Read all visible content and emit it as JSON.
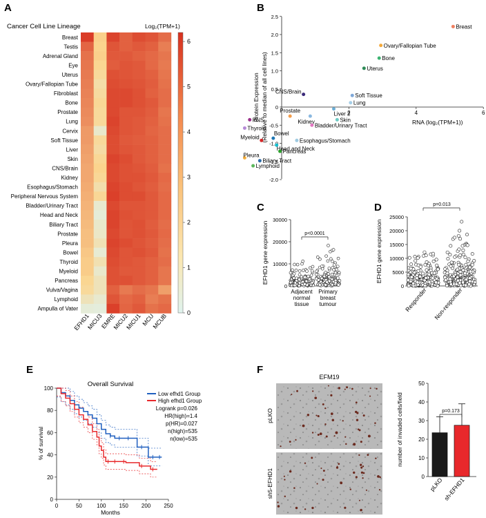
{
  "panels": {
    "a": "A",
    "b": "B",
    "c": "C",
    "d": "D",
    "e": "E",
    "f": "F"
  },
  "heatmap": {
    "title": "Cancer Cell Line Lineage",
    "colorbar_title": "Log₂(TPM+1)",
    "colorbar_ticks": [
      "0",
      "1",
      "2",
      "3",
      "4",
      "5",
      "6"
    ],
    "columns": [
      "EFHD1",
      "MICU3",
      "EMRE",
      "MICU2",
      "MICU1",
      "MCU",
      "MCUB"
    ],
    "rows": [
      "Breast",
      "Testis",
      "Adrenal Gland",
      "Eye",
      "Uterus",
      "Ovary/Fallopian Tube",
      "Fibroblast",
      "Bone",
      "Prostate",
      "Lung",
      "Cervix",
      "Soft Tissue",
      "Liver",
      "Skin",
      "CNS/Brain",
      "Kidney",
      "Esophagus/Stomach",
      "Peripheral Nervous System",
      "Bladder/Urinary Tract",
      "Head and Neck",
      "Biliary Tract",
      "Prostate",
      "Pleura",
      "Bowel",
      "Thyroid",
      "Myeloid",
      "Pancreas",
      "Vulva/Vagina",
      "Lymphoid",
      "Ampulla of Vater"
    ],
    "values": [
      [
        5.9,
        2.3,
        5.7,
        5.0,
        5.5,
        5.3,
        4.7
      ],
      [
        4.9,
        2.2,
        5.3,
        5.0,
        5.2,
        5.0,
        4.3
      ],
      [
        4.6,
        2.3,
        5.2,
        5.2,
        5.0,
        4.8,
        4.5
      ],
      [
        4.5,
        2.1,
        5.1,
        5.3,
        5.2,
        4.8,
        4.4
      ],
      [
        4.4,
        1.9,
        5.4,
        5.3,
        5.2,
        5.0,
        4.5
      ],
      [
        4.3,
        1.6,
        5.5,
        5.4,
        5.3,
        5.1,
        4.6
      ],
      [
        4.2,
        1.8,
        5.6,
        5.6,
        5.4,
        5.0,
        4.7
      ],
      [
        4.1,
        2.0,
        5.6,
        5.6,
        5.4,
        5.2,
        4.7
      ],
      [
        4.0,
        1.9,
        5.6,
        5.3,
        5.3,
        5.1,
        4.5
      ],
      [
        3.9,
        1.9,
        5.7,
        5.3,
        5.2,
        5.0,
        4.6
      ],
      [
        3.6,
        0.8,
        5.6,
        5.3,
        5.2,
        4.9,
        4.7
      ],
      [
        3.6,
        1.9,
        5.5,
        5.2,
        5.1,
        5.0,
        4.7
      ],
      [
        3.5,
        1.7,
        5.5,
        5.3,
        5.2,
        5.0,
        4.7
      ],
      [
        3.4,
        2.0,
        5.7,
        5.5,
        5.2,
        5.0,
        4.7
      ],
      [
        3.3,
        2.2,
        5.6,
        5.4,
        5.3,
        5.1,
        4.6
      ],
      [
        3.3,
        2.0,
        5.6,
        5.4,
        5.4,
        5.2,
        4.8
      ],
      [
        3.2,
        1.5,
        5.7,
        5.5,
        5.3,
        5.1,
        4.7
      ],
      [
        3.1,
        2.0,
        5.8,
        5.5,
        5.5,
        5.2,
        4.8
      ],
      [
        3.0,
        0.7,
        5.6,
        5.3,
        5.3,
        5.2,
        4.8
      ],
      [
        2.9,
        0.5,
        5.7,
        5.4,
        5.3,
        5.2,
        4.8
      ],
      [
        2.8,
        0.8,
        5.7,
        5.3,
        5.4,
        5.1,
        4.7
      ],
      [
        2.7,
        0.9,
        5.6,
        5.3,
        5.4,
        5.2,
        4.8
      ],
      [
        2.7,
        1.3,
        5.7,
        5.5,
        5.3,
        5.1,
        4.7
      ],
      [
        2.5,
        0.6,
        5.6,
        5.3,
        5.4,
        5.2,
        4.6
      ],
      [
        2.4,
        1.4,
        5.5,
        5.3,
        5.2,
        5.0,
        4.7
      ],
      [
        2.4,
        0.8,
        5.4,
        5.2,
        5.2,
        5.0,
        4.5
      ],
      [
        2.1,
        1.2,
        5.4,
        5.4,
        5.2,
        5.0,
        4.5
      ],
      [
        1.9,
        1.2,
        5.0,
        4.4,
        4.7,
        4.5,
        3.5
      ],
      [
        1.2,
        0.7,
        5.3,
        4.8,
        5.0,
        4.3,
        4.6
      ],
      [
        0.5,
        0.4,
        5.8,
        4.9,
        5.2,
        4.6,
        4.8
      ]
    ],
    "colormin": "#dff3ee",
    "colormid": "#fbd58f",
    "colormax": "#d7301f"
  },
  "scatter": {
    "ylabel": "Protein Expression",
    "ylabel2": "(Relative to median of all cell lines)",
    "xlabel": "RNA (log₂(TPM+1))",
    "xticks": [
      "2",
      "4",
      "6"
    ],
    "yticks": [
      "2.5",
      "2.0",
      "1.5",
      "1.0",
      "0.5",
      "0",
      "-0.5",
      "-1.0",
      "-1.5",
      "-2.0"
    ],
    "points": [
      {
        "label": "Breast",
        "x": 5.1,
        "y": 2.22,
        "color": "#f08060"
      },
      {
        "label": "Ovary/Fallopian Tube",
        "x": 2.95,
        "y": 1.7,
        "color": "#f4a93a"
      },
      {
        "label": "Bone",
        "x": 2.9,
        "y": 1.35,
        "color": "#3cb371"
      },
      {
        "label": "Uterus",
        "x": 2.45,
        "y": 1.07,
        "color": "#2e8b57"
      },
      {
        "label": "CNS/Brain",
        "x": 0.65,
        "y": 0.35,
        "color": "#3b2a7a"
      },
      {
        "label": "Soft Tissue",
        "x": 2.1,
        "y": 0.32,
        "color": "#7fa8d8"
      },
      {
        "label": "Lung",
        "x": 2.05,
        "y": 0.12,
        "color": "#a6cfe8"
      },
      {
        "label": "Liver 2",
        "x": 1.55,
        "y": -0.05,
        "color": "#6baed6"
      },
      {
        "label": "Prostate",
        "x": 0.25,
        "y": -0.25,
        "color": "#f39c4a"
      },
      {
        "label": "Kidney",
        "x": 0.85,
        "y": -0.25,
        "color": "#8ab8e0"
      },
      {
        "label": "Skin",
        "x": 1.65,
        "y": -0.35,
        "color": "#6ccac4"
      },
      {
        "label": "PNS",
        "x": -0.95,
        "y": -0.35,
        "color": "#9b2f8a"
      },
      {
        "label": "Bladder/Urinary Tract",
        "x": 0.9,
        "y": -0.5,
        "color": "#e377c2"
      },
      {
        "label": "Thyroid",
        "x": -1.1,
        "y": -0.58,
        "color": "#b58ad6"
      },
      {
        "label": "Myeloid",
        "x": -0.6,
        "y": -0.92,
        "color": "#d62728"
      },
      {
        "label": "Bowel",
        "x": -0.25,
        "y": -0.86,
        "color": "#1f77b4"
      },
      {
        "label": "Esophagus/Stomach",
        "x": 0.45,
        "y": -0.92,
        "color": "#9ecae1"
      },
      {
        "label": "Head and Neck",
        "x": -0.15,
        "y": -1.05,
        "color": "#17becf"
      },
      {
        "label": "Pancreas",
        "x": -0.05,
        "y": -1.22,
        "color": "#2ca02c"
      },
      {
        "label": "Pleura",
        "x": -1.1,
        "y": -1.4,
        "color": "#f5b041"
      },
      {
        "label": "Biliary Tract",
        "x": -0.65,
        "y": -1.48,
        "color": "#2b6aa8"
      },
      {
        "label": "Lymphoid",
        "x": -0.85,
        "y": -1.62,
        "color": "#5cb85c"
      }
    ]
  },
  "panel_c": {
    "ylabel": "EFHD1 gene expression",
    "yticks": [
      "0",
      "10000",
      "20000",
      "30000"
    ],
    "pvalue": "p<0.0001",
    "groups": [
      {
        "label1": "Adjacent",
        "label2": "normal",
        "label3": "tissue",
        "mean": 3300
      },
      {
        "label1": "Primary",
        "label2": "breast",
        "label3": "tumour",
        "mean": 4400
      }
    ],
    "chart_data": {
      "type": "bar",
      "categories": [
        "Adjacent normal tissue",
        "Primary breast tumour"
      ],
      "values": [
        3300,
        4400
      ],
      "ylim": [
        0,
        30000
      ]
    }
  },
  "panel_d": {
    "ylabel": "EFHD1 gene expression",
    "yticks": [
      "0",
      "5000",
      "10000",
      "15000",
      "20000",
      "25000"
    ],
    "pvalue": "p=0.013",
    "groups": [
      {
        "label": "Responder",
        "mean": 3600
      },
      {
        "label": "Non-responder",
        "mean": 4100
      }
    ],
    "chart_data": {
      "type": "bar",
      "categories": [
        "Responder",
        "Non-responder"
      ],
      "values": [
        3600,
        4100
      ],
      "ylim": [
        0,
        25000
      ]
    }
  },
  "survival": {
    "title": "Overall Survival",
    "ylabel": "% of survival",
    "xlabel": "Months",
    "xticks": [
      "0",
      "50",
      "100",
      "150",
      "200",
      "250"
    ],
    "yticks": [
      "0",
      "20",
      "40",
      "60",
      "80",
      "100"
    ],
    "legend": [
      "Low efhd1 Group",
      "High efhd1 Group"
    ],
    "stats": [
      "Logrank p=0.026",
      "HR(high)=1.4",
      "p(HR)=0.027",
      "n(high)=535",
      "n(low)=535"
    ],
    "low_color": "#1f5fbf",
    "high_color": "#e8282b"
  },
  "panel_f": {
    "title": "EFM19",
    "row_labels": [
      "pLKO",
      "sh5-EFHD1"
    ],
    "ylabel": "number of invaded cells/field",
    "yticks": [
      "0",
      "10",
      "20",
      "30",
      "40",
      "50"
    ],
    "pvalue": "p=0.173",
    "chart_data": {
      "type": "bar",
      "categories": [
        "pLKO",
        "sh-EFHD1"
      ],
      "values": [
        23.5,
        27.5
      ],
      "errors": [
        8.5,
        11.5
      ],
      "ylim": [
        0,
        50
      ]
    },
    "bar_colors": [
      "#1a1a1a",
      "#e8282b"
    ]
  }
}
